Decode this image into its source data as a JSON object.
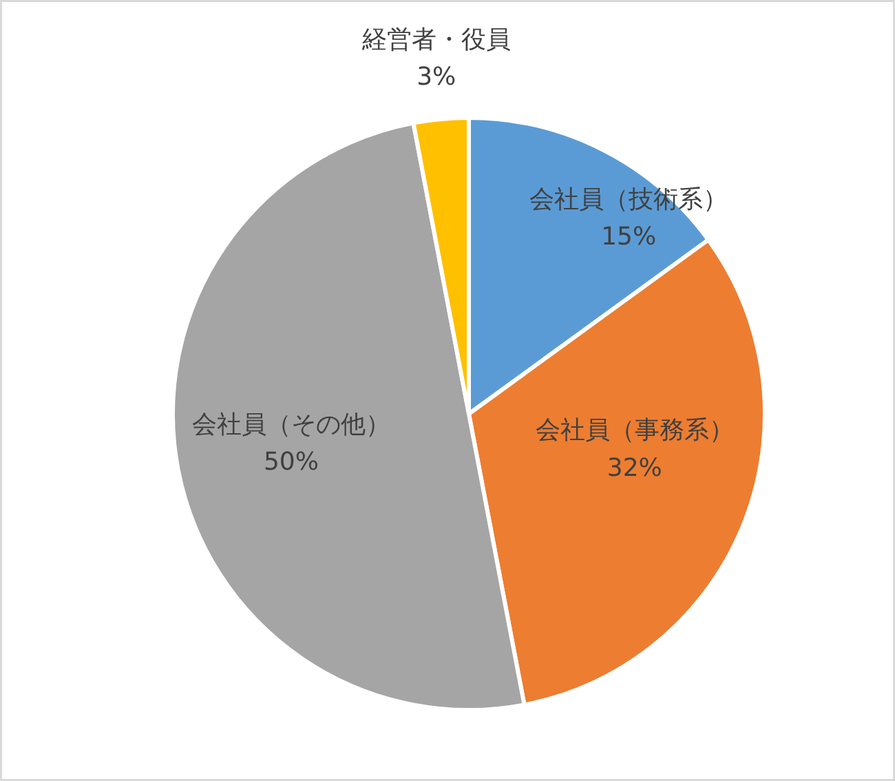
{
  "chart_data": {
    "type": "pie",
    "categories": [
      "会社員（技術系）",
      "会社員（事務系）",
      "会社員（その他）",
      "経営者・役員"
    ],
    "values": [
      15,
      32,
      50,
      3
    ],
    "colors": [
      "#5b9bd5",
      "#ed7d31",
      "#a5a5a5",
      "#ffc000"
    ],
    "value_labels": [
      "15%",
      "32%",
      "50%",
      "3%"
    ],
    "legend": false
  }
}
